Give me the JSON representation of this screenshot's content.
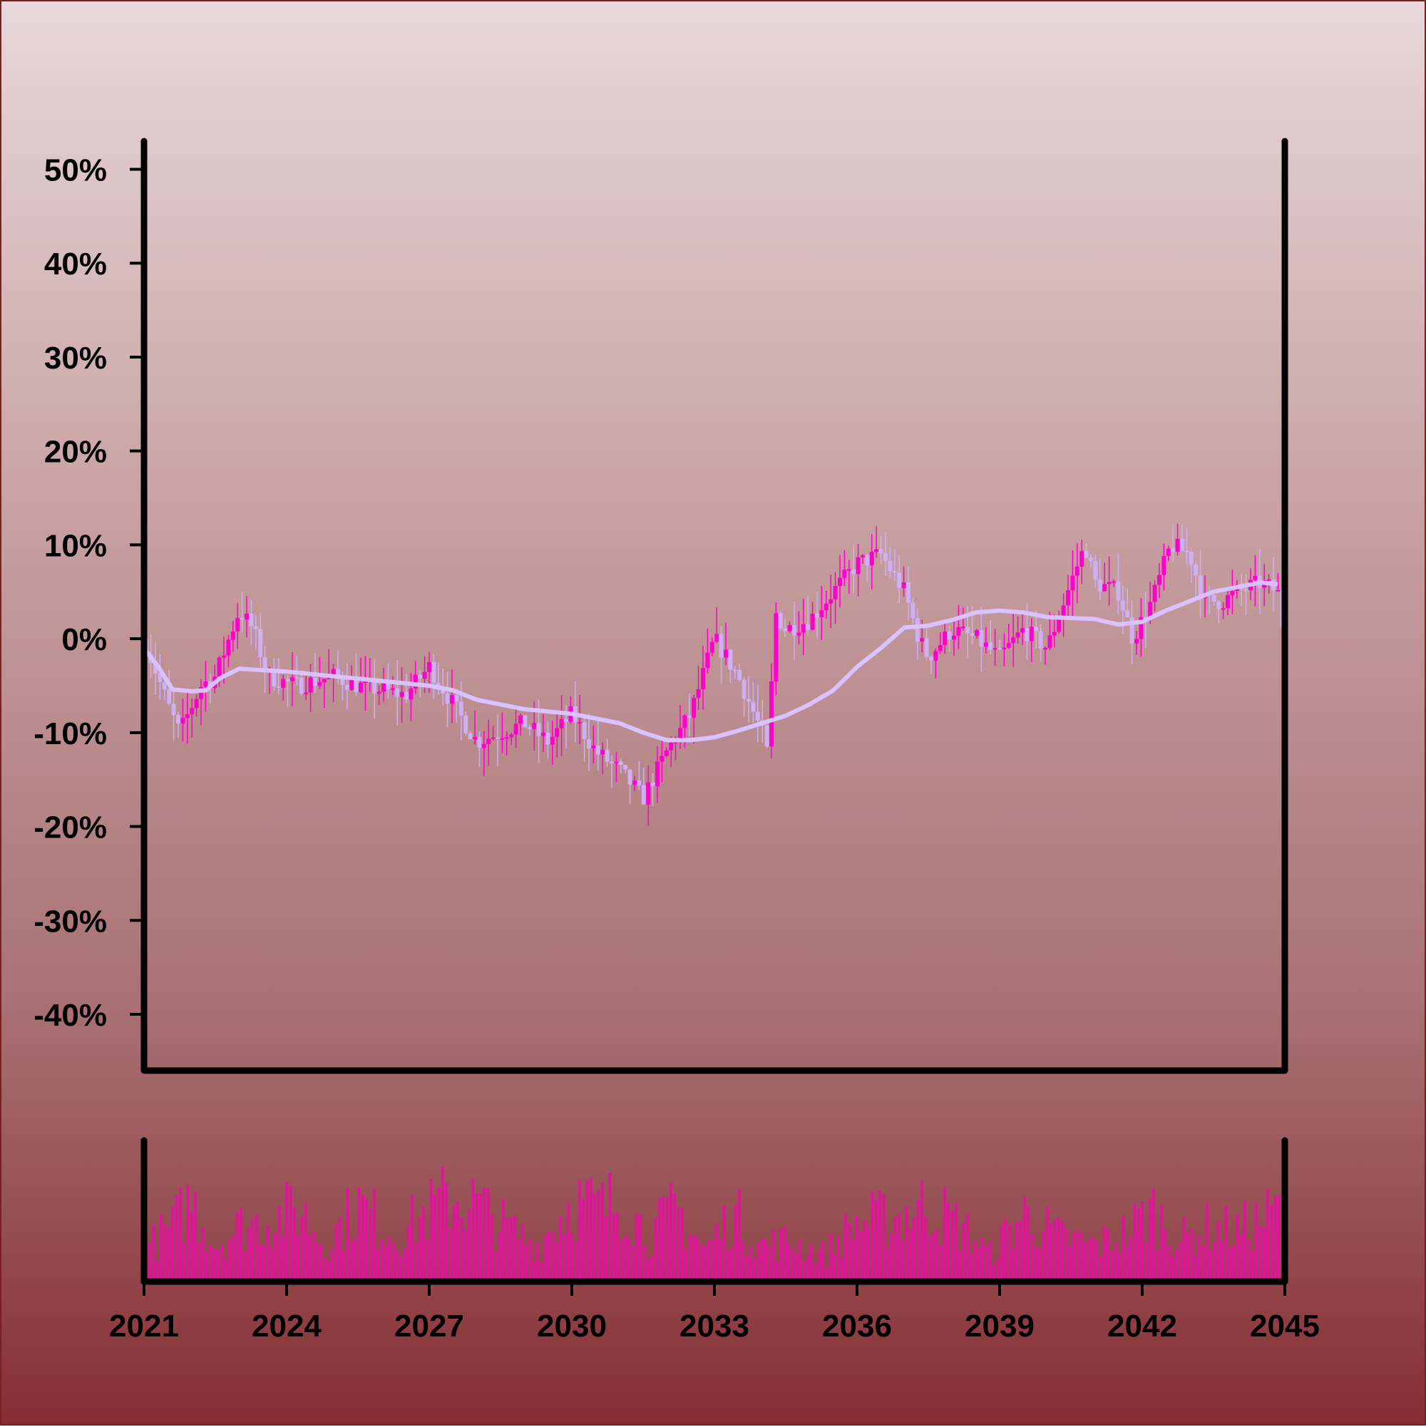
{
  "colors": {
    "candle_up": "#ff00cc",
    "candle_down": "#cfb0f5",
    "moving_average": "#d9c2ff",
    "volume": "#e0149c",
    "axis": "#000000"
  },
  "chart_data": {
    "type": "candlestick",
    "title": "",
    "xlabel": "",
    "ylabel": "",
    "x_range": [
      "2021-01",
      "2045-01"
    ],
    "ylim": [
      -0.46,
      0.53
    ],
    "y_ticks": [
      {
        "v": 0.5,
        "label": "50%"
      },
      {
        "v": 0.4,
        "label": "40%"
      },
      {
        "v": 0.3,
        "label": "30%"
      },
      {
        "v": 0.2,
        "label": "20%"
      },
      {
        "v": 0.1,
        "label": "10%"
      },
      {
        "v": 0.0,
        "label": "0%"
      },
      {
        "v": -0.1,
        "label": "-10%"
      },
      {
        "v": -0.2,
        "label": "-20%"
      },
      {
        "v": -0.3,
        "label": "-30%"
      },
      {
        "v": -0.4,
        "label": "-40%"
      }
    ],
    "x_ticks": [
      {
        "v": 2021,
        "label": "2021"
      },
      {
        "v": 2024,
        "label": "2024"
      },
      {
        "v": 2027,
        "label": "2027"
      },
      {
        "v": 2030,
        "label": "2030"
      },
      {
        "v": 2033,
        "label": "2033"
      },
      {
        "v": 2036,
        "label": "2036"
      },
      {
        "v": 2039,
        "label": "2039"
      },
      {
        "v": 2042,
        "label": "2042"
      },
      {
        "v": 2045,
        "label": "2045"
      }
    ],
    "price_close_path": [
      [
        2021.0,
        0.0
      ],
      [
        2021.5,
        -0.07
      ],
      [
        2021.75,
        -0.1
      ],
      [
        2022.2,
        -0.05
      ],
      [
        2022.5,
        -0.04
      ],
      [
        2023.0,
        0.03
      ],
      [
        2023.3,
        0.01
      ],
      [
        2023.6,
        -0.04
      ],
      [
        2024.2,
        -0.05
      ],
      [
        2025.0,
        -0.04
      ],
      [
        2025.5,
        -0.05
      ],
      [
        2026.5,
        -0.06
      ],
      [
        2027.0,
        -0.03
      ],
      [
        2027.5,
        -0.07
      ],
      [
        2028.0,
        -0.11
      ],
      [
        2029.0,
        -0.09
      ],
      [
        2029.5,
        -0.11
      ],
      [
        2030.0,
        -0.08
      ],
      [
        2030.5,
        -0.12
      ],
      [
        2031.0,
        -0.14
      ],
      [
        2031.5,
        -0.17
      ],
      [
        2032.0,
        -0.12
      ],
      [
        2032.5,
        -0.08
      ],
      [
        2033.0,
        0.0
      ],
      [
        2033.5,
        -0.04
      ],
      [
        2034.0,
        -0.1
      ],
      [
        2034.15,
        -0.13
      ],
      [
        2034.25,
        0.03
      ],
      [
        2034.5,
        0.01
      ],
      [
        2035.0,
        0.02
      ],
      [
        2035.5,
        0.05
      ],
      [
        2036.0,
        0.08
      ],
      [
        2036.5,
        0.09
      ],
      [
        2037.0,
        0.05
      ],
      [
        2037.3,
        0.0
      ],
      [
        2037.5,
        -0.02
      ],
      [
        2038.0,
        0.01
      ],
      [
        2038.5,
        0.0
      ],
      [
        2039.0,
        -0.02
      ],
      [
        2039.5,
        0.01
      ],
      [
        2040.0,
        -0.01
      ],
      [
        2040.5,
        0.06
      ],
      [
        2040.8,
        0.1
      ],
      [
        2041.0,
        0.06
      ],
      [
        2041.5,
        0.05
      ],
      [
        2041.8,
        0.0
      ],
      [
        2042.2,
        0.04
      ],
      [
        2042.6,
        0.1
      ],
      [
        2043.0,
        0.09
      ],
      [
        2043.3,
        0.04
      ],
      [
        2043.7,
        0.04
      ],
      [
        2044.0,
        0.05
      ],
      [
        2044.5,
        0.06
      ],
      [
        2044.85,
        0.05
      ],
      [
        2045.0,
        0.0
      ]
    ],
    "moving_average": [
      [
        2021.0,
        -0.01
      ],
      [
        2021.3,
        -0.03
      ],
      [
        2021.6,
        -0.054
      ],
      [
        2022.0,
        -0.056
      ],
      [
        2022.3,
        -0.055
      ],
      [
        2022.6,
        -0.042
      ],
      [
        2023.0,
        -0.032
      ],
      [
        2024.0,
        -0.035
      ],
      [
        2025.0,
        -0.04
      ],
      [
        2026.0,
        -0.045
      ],
      [
        2027.0,
        -0.05
      ],
      [
        2027.5,
        -0.055
      ],
      [
        2028.0,
        -0.065
      ],
      [
        2029.0,
        -0.075
      ],
      [
        2030.0,
        -0.08
      ],
      [
        2031.0,
        -0.09
      ],
      [
        2031.5,
        -0.1
      ],
      [
        2032.0,
        -0.108
      ],
      [
        2032.5,
        -0.108
      ],
      [
        2033.0,
        -0.105
      ],
      [
        2033.5,
        -0.098
      ],
      [
        2034.0,
        -0.09
      ],
      [
        2034.5,
        -0.082
      ],
      [
        2035.0,
        -0.07
      ],
      [
        2035.5,
        -0.055
      ],
      [
        2036.0,
        -0.03
      ],
      [
        2036.5,
        -0.01
      ],
      [
        2037.0,
        0.012
      ],
      [
        2037.5,
        0.014
      ],
      [
        2038.0,
        0.02
      ],
      [
        2038.5,
        0.028
      ],
      [
        2039.0,
        0.03
      ],
      [
        2039.5,
        0.028
      ],
      [
        2040.0,
        0.023
      ],
      [
        2041.0,
        0.021
      ],
      [
        2041.5,
        0.015
      ],
      [
        2042.0,
        0.018
      ],
      [
        2042.5,
        0.03
      ],
      [
        2043.0,
        0.04
      ],
      [
        2043.5,
        0.05
      ],
      [
        2044.0,
        0.055
      ],
      [
        2044.5,
        0.06
      ],
      [
        2044.85,
        0.058
      ]
    ],
    "volume_envelope": [
      [
        2021.0,
        0.35
      ],
      [
        2021.6,
        0.6
      ],
      [
        2022.0,
        0.9
      ],
      [
        2022.5,
        0.4
      ],
      [
        2023.0,
        0.6
      ],
      [
        2023.8,
        0.7
      ],
      [
        2024.3,
        0.8
      ],
      [
        2024.8,
        0.4
      ],
      [
        2025.5,
        0.85
      ],
      [
        2026.3,
        0.5
      ],
      [
        2026.8,
        0.7
      ],
      [
        2027.5,
        0.95
      ],
      [
        2028.0,
        0.85
      ],
      [
        2028.6,
        0.6
      ],
      [
        2029.3,
        0.4
      ],
      [
        2030.0,
        0.9
      ],
      [
        2030.6,
        0.8
      ],
      [
        2031.1,
        0.9
      ],
      [
        2031.6,
        0.5
      ],
      [
        2032.2,
        0.8
      ],
      [
        2032.8,
        0.35
      ],
      [
        2033.4,
        0.75
      ],
      [
        2034.0,
        0.4
      ],
      [
        2034.6,
        0.45
      ],
      [
        2035.3,
        0.3
      ],
      [
        2036.0,
        0.65
      ],
      [
        2036.8,
        0.7
      ],
      [
        2037.5,
        0.85
      ],
      [
        2038.2,
        0.6
      ],
      [
        2038.8,
        0.3
      ],
      [
        2039.5,
        0.75
      ],
      [
        2040.2,
        0.5
      ],
      [
        2041.0,
        0.4
      ],
      [
        2041.7,
        0.55
      ],
      [
        2042.2,
        0.8
      ],
      [
        2042.8,
        0.45
      ],
      [
        2043.4,
        0.6
      ],
      [
        2044.0,
        0.55
      ],
      [
        2044.6,
        0.7
      ],
      [
        2045.0,
        0.85
      ]
    ]
  }
}
